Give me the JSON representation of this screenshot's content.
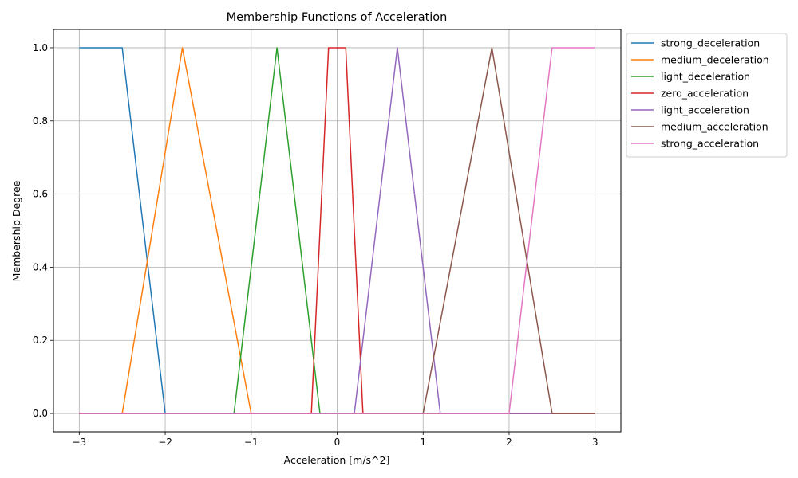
{
  "chart_data": {
    "type": "line",
    "title": "Membership Functions of Acceleration",
    "xlabel": "Acceleration [m/s^2]",
    "ylabel": "Membership Degree",
    "xlim": [
      -3.3,
      3.3
    ],
    "ylim": [
      -0.05,
      1.05
    ],
    "xticks": [
      -3,
      -2,
      -1,
      0,
      1,
      2,
      3
    ],
    "xtick_labels": [
      "−3",
      "−2",
      "−1",
      "0",
      "1",
      "2",
      "3"
    ],
    "yticks": [
      0.0,
      0.2,
      0.4,
      0.6,
      0.8,
      1.0
    ],
    "ytick_labels": [
      "0.0",
      "0.2",
      "0.4",
      "0.6",
      "0.8",
      "1.0"
    ],
    "grid": true,
    "legend_position": "outside-top-right",
    "series": [
      {
        "name": "strong_deceleration",
        "color": "#1f77b4",
        "points": [
          [
            -3,
            1
          ],
          [
            -2.5,
            1
          ],
          [
            -2,
            0
          ],
          [
            3,
            0
          ]
        ]
      },
      {
        "name": "medium_deceleration",
        "color": "#ff7f0e",
        "points": [
          [
            -3,
            0
          ],
          [
            -2.5,
            0
          ],
          [
            -1.8,
            1
          ],
          [
            -1,
            0
          ],
          [
            3,
            0
          ]
        ]
      },
      {
        "name": "light_deceleration",
        "color": "#2ca02c",
        "points": [
          [
            -3,
            0
          ],
          [
            -1.2,
            0
          ],
          [
            -0.7,
            1
          ],
          [
            -0.2,
            0
          ],
          [
            3,
            0
          ]
        ]
      },
      {
        "name": "zero_acceleration",
        "color": "#d62728",
        "points": [
          [
            -3,
            0
          ],
          [
            -0.3,
            0
          ],
          [
            -0.1,
            1
          ],
          [
            0.1,
            1
          ],
          [
            0.3,
            0
          ],
          [
            3,
            0
          ]
        ]
      },
      {
        "name": "light_acceleration",
        "color": "#9467bd",
        "points": [
          [
            -3,
            0
          ],
          [
            0.2,
            0
          ],
          [
            0.7,
            1
          ],
          [
            1.2,
            0
          ],
          [
            3,
            0
          ]
        ]
      },
      {
        "name": "medium_acceleration",
        "color": "#8c564b",
        "points": [
          [
            -3,
            0
          ],
          [
            1,
            0
          ],
          [
            1.8,
            1
          ],
          [
            2.5,
            0
          ],
          [
            3,
            0
          ]
        ]
      },
      {
        "name": "strong_acceleration",
        "color": "#e377c2",
        "points": [
          [
            -3,
            0
          ],
          [
            2,
            0
          ],
          [
            2.5,
            1
          ],
          [
            3,
            1
          ]
        ]
      }
    ]
  }
}
